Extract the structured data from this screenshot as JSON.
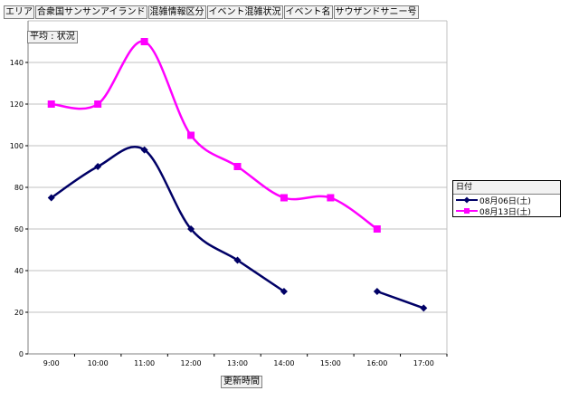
{
  "filters": [
    "エリア",
    "合衆国サンサンアイランド",
    "混雑情報区分",
    "イベント混雑状況",
    "イベント名",
    "サウザンドサニー号"
  ],
  "measure_label": "平均 : 状況",
  "x_field_label": "更新時間",
  "legend": {
    "title": "日付"
  },
  "colors": {
    "series1": "#000066",
    "series2": "#ff00ff",
    "grid": "#c0c0c0"
  },
  "chart_data": {
    "type": "line",
    "categories": [
      "9:00",
      "10:00",
      "11:00",
      "12:00",
      "13:00",
      "14:00",
      "15:00",
      "16:00",
      "17:00"
    ],
    "ylim": [
      0,
      160
    ],
    "yticks": [
      0,
      20,
      40,
      60,
      80,
      100,
      120,
      140
    ],
    "grid": true,
    "legend_position": "right",
    "series": [
      {
        "name": "08月06日(土)",
        "marker": "diamond",
        "values": [
          75,
          90,
          98,
          60,
          45,
          30,
          null,
          30,
          22
        ]
      },
      {
        "name": "08月13日(土)",
        "marker": "square",
        "values": [
          120,
          120,
          150,
          105,
          90,
          75,
          75,
          60,
          null
        ]
      }
    ]
  }
}
